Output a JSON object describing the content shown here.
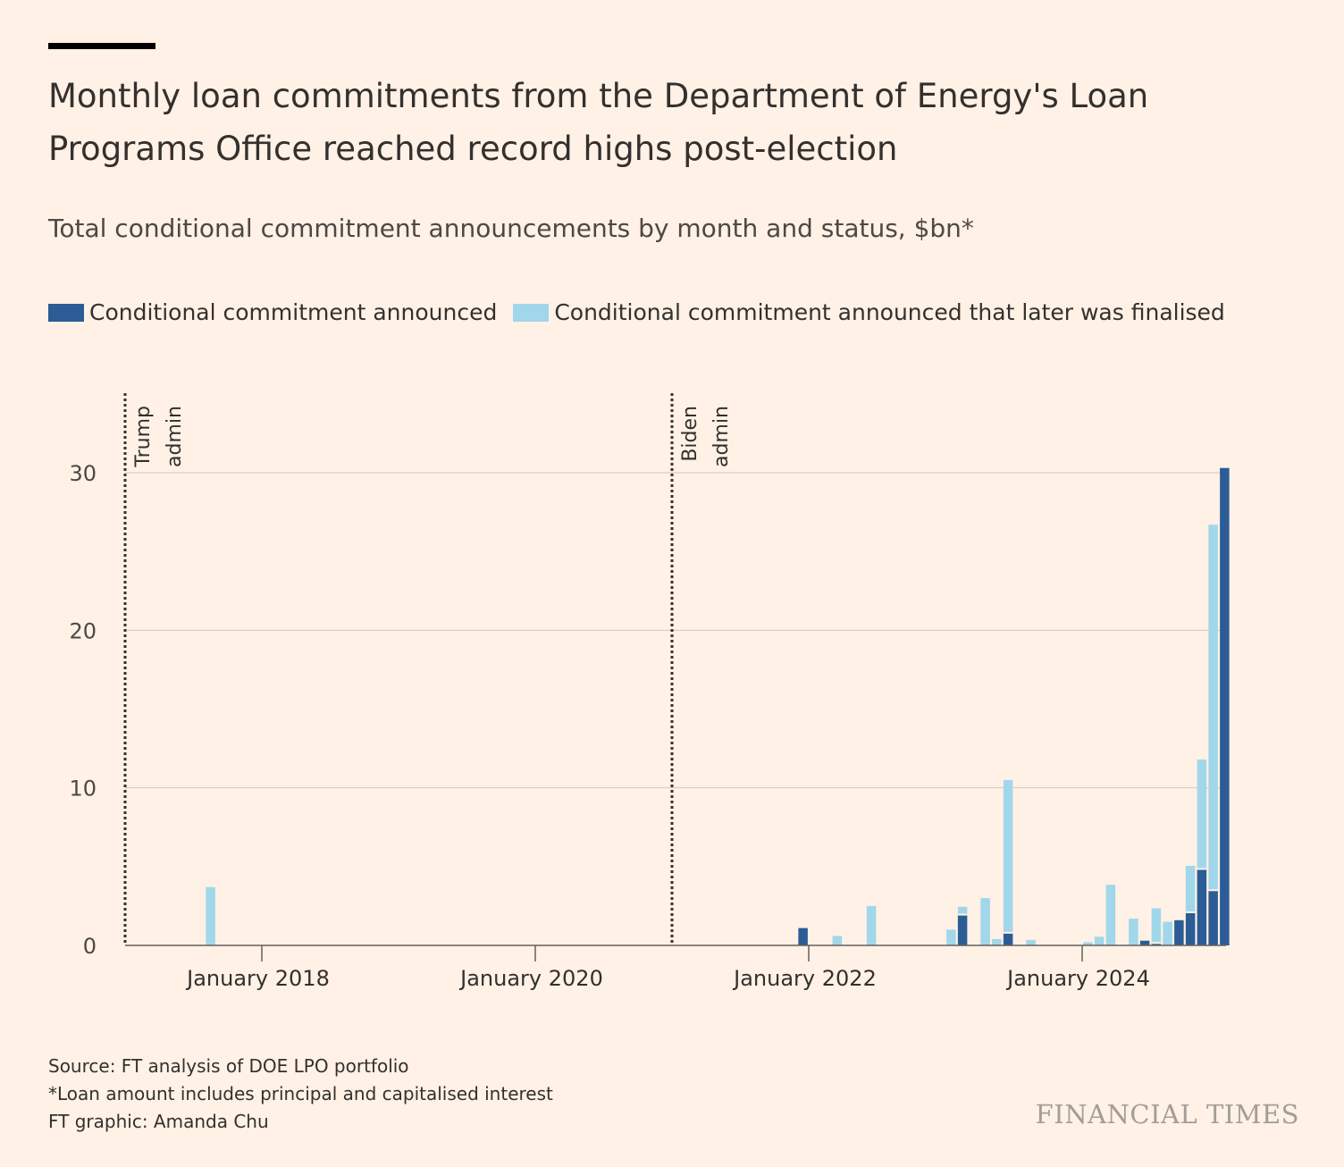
{
  "title": "Monthly loan commitments from the Department of Energy's Loan Programs Office reached record highs post-election",
  "subtitle": "Total conditional commitment announcements by month and status, $bn*",
  "legend": [
    {
      "label": "Conditional commitment announced",
      "color": "#2b5c95"
    },
    {
      "label": "Conditional commitment announced that later was finalised",
      "color": "#a1d7ea"
    }
  ],
  "footer": {
    "source": "Source: FT analysis of DOE LPO portfolio",
    "note": "*Loan amount includes principal and capitalised interest",
    "credit": "FT graphic: Amanda Chu"
  },
  "brand": "FINANCIAL TIMES",
  "chart_data": {
    "type": "bar",
    "stacked": true,
    "x_start": "2017-01",
    "x_end": "2025-01",
    "ylim": [
      0,
      35
    ],
    "y_ticks": [
      0,
      10,
      20,
      30
    ],
    "x_ticks": [
      {
        "label": "January 2018",
        "month": "2018-01"
      },
      {
        "label": "January 2020",
        "month": "2020-01"
      },
      {
        "label": "January 2022",
        "month": "2022-01"
      },
      {
        "label": "January 2024",
        "month": "2024-01"
      }
    ],
    "grid": true,
    "annotations": [
      {
        "month": "2017-01",
        "lines": [
          "Trump",
          "admin"
        ]
      },
      {
        "month": "2021-01",
        "lines": [
          "Biden",
          "admin"
        ]
      }
    ],
    "series": [
      {
        "name": "Conditional commitment announced",
        "color": "#2b5c95",
        "points": [
          {
            "month": "2021-12",
            "value": 1.1
          },
          {
            "month": "2023-02",
            "value": 1.95
          },
          {
            "month": "2023-06",
            "value": 0.8
          },
          {
            "month": "2024-06",
            "value": 0.3
          },
          {
            "month": "2024-07",
            "value": 0.15
          },
          {
            "month": "2024-09",
            "value": 1.6
          },
          {
            "month": "2024-10",
            "value": 2.1
          },
          {
            "month": "2024-11",
            "value": 4.85
          },
          {
            "month": "2024-12",
            "value": 3.5
          },
          {
            "month": "2025-01",
            "value": 30.3
          }
        ]
      },
      {
        "name": "Conditional commitment announced that later was finalised",
        "color": "#a1d7ea",
        "points": [
          {
            "month": "2017-08",
            "value": 3.7
          },
          {
            "month": "2022-03",
            "value": 0.6
          },
          {
            "month": "2022-06",
            "value": 2.5
          },
          {
            "month": "2023-01",
            "value": 1.0
          },
          {
            "month": "2023-02",
            "value": 0.5
          },
          {
            "month": "2023-04",
            "value": 3.0
          },
          {
            "month": "2023-05",
            "value": 0.4
          },
          {
            "month": "2023-06",
            "value": 9.7
          },
          {
            "month": "2023-08",
            "value": 0.35
          },
          {
            "month": "2024-01",
            "value": 0.2
          },
          {
            "month": "2024-02",
            "value": 0.55
          },
          {
            "month": "2024-03",
            "value": 3.85
          },
          {
            "month": "2024-05",
            "value": 1.7
          },
          {
            "month": "2024-07",
            "value": 2.2
          },
          {
            "month": "2024-08",
            "value": 1.5
          },
          {
            "month": "2024-10",
            "value": 2.95
          },
          {
            "month": "2024-11",
            "value": 6.95
          },
          {
            "month": "2024-12",
            "value": 23.2
          }
        ]
      }
    ]
  }
}
